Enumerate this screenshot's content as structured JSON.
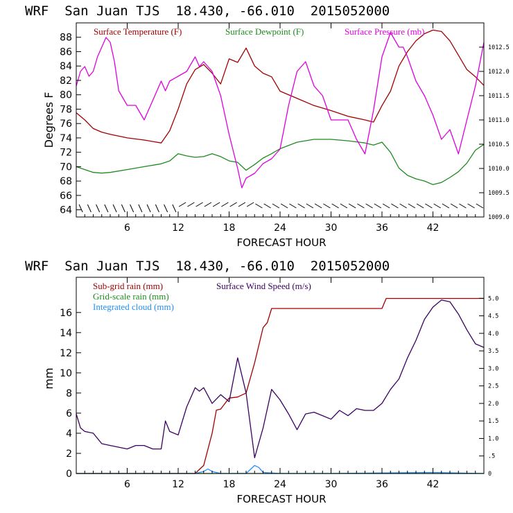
{
  "chart_data": [
    {
      "type": "line",
      "title": "WRF  San Juan TJS  18.430, -66.010  2015052000",
      "xlabel": "FORECAST HOUR",
      "ylabel": "Degrees F",
      "xlim": [
        0,
        48
      ],
      "ylim": [
        63,
        90
      ],
      "y2lim": [
        1009,
        1013
      ],
      "xticks": [
        6,
        12,
        18,
        24,
        30,
        36,
        42
      ],
      "yticks": [
        64,
        66,
        68,
        70,
        72,
        74,
        76,
        78,
        80,
        82,
        84,
        86,
        88
      ],
      "y2ticks": [
        1009.0,
        1009.5,
        1010.0,
        1010.5,
        1011.0,
        1011.5,
        1012.0,
        1012.5
      ],
      "y2tick_labels": [
        "1009.0",
        "1009.5",
        "1010.0",
        "1010.5",
        "1011.0",
        "1011.5",
        "1012.0",
        "1012.5"
      ],
      "colors": {
        "temp": "#a00000",
        "dew": "#1f8a1f",
        "pres": "#dd00dd"
      },
      "series": [
        {
          "name": "Surface Temperature (F)",
          "axis": "left",
          "color": "#a00000",
          "x": [
            0,
            1,
            2,
            3,
            4,
            6,
            8,
            9,
            10,
            11,
            12,
            13,
            14,
            15,
            16,
            17,
            18,
            19,
            20,
            21,
            22,
            23,
            24,
            26,
            28,
            30,
            32,
            34,
            35,
            36,
            37,
            38,
            39,
            40,
            41,
            42,
            43,
            44,
            45,
            46,
            47,
            48
          ],
          "y": [
            77.5,
            76.5,
            75.3,
            74.8,
            74.5,
            74.0,
            73.7,
            73.5,
            73.3,
            75.0,
            78.0,
            81.5,
            83.5,
            84.2,
            83.0,
            81.5,
            85.0,
            84.5,
            86.5,
            84.0,
            83.0,
            82.5,
            80.5,
            79.5,
            78.5,
            77.8,
            77.0,
            76.5,
            76.2,
            78.5,
            80.5,
            84.0,
            86.0,
            87.5,
            88.5,
            89.0,
            88.8,
            87.5,
            85.5,
            83.5,
            82.5,
            81.3
          ]
        },
        {
          "name": "Surface Dewpoint (F)",
          "axis": "left",
          "color": "#1f8a1f",
          "x": [
            0,
            1,
            2,
            3,
            4,
            6,
            8,
            10,
            11,
            12,
            13,
            14,
            15,
            16,
            17,
            18,
            19,
            20,
            21,
            22,
            23,
            24,
            26,
            28,
            30,
            32,
            34,
            35,
            36,
            37,
            38,
            39,
            40,
            41,
            42,
            43,
            44,
            45,
            46,
            47,
            48
          ],
          "y": [
            70.0,
            69.6,
            69.2,
            69.1,
            69.2,
            69.6,
            70.0,
            70.4,
            70.8,
            71.8,
            71.5,
            71.3,
            71.4,
            71.8,
            71.4,
            70.8,
            70.6,
            69.5,
            70.3,
            71.2,
            71.8,
            72.5,
            73.4,
            73.8,
            73.8,
            73.6,
            73.3,
            73.0,
            73.4,
            72.0,
            69.8,
            68.8,
            68.3,
            68.0,
            67.5,
            67.8,
            68.5,
            69.3,
            70.5,
            72.3,
            73.1
          ]
        },
        {
          "name": "Surface Pressure (mb)",
          "axis": "right",
          "color": "#dd00dd",
          "x": [
            0,
            0.5,
            1,
            1.5,
            2,
            2.5,
            3,
            3.5,
            4,
            4.5,
            5,
            6,
            7,
            8,
            8.5,
            9,
            10,
            10.5,
            11,
            12,
            13,
            14,
            14.5,
            15,
            16,
            17,
            18,
            19,
            19.5,
            20,
            21,
            22,
            23,
            24,
            25,
            26,
            27,
            28,
            29,
            30,
            31,
            32,
            33,
            34,
            35,
            36,
            37,
            38,
            38.5,
            39,
            40,
            41,
            42,
            43,
            44,
            45,
            46,
            47,
            48
          ],
          "y": [
            1011.7,
            1012.0,
            1012.1,
            1011.9,
            1012.0,
            1012.3,
            1012.5,
            1012.7,
            1012.6,
            1012.2,
            1011.6,
            1011.3,
            1011.3,
            1011.0,
            1011.2,
            1011.4,
            1011.8,
            1011.6,
            1011.8,
            1011.9,
            1012.0,
            1012.3,
            1012.1,
            1012.2,
            1012.0,
            1011.5,
            1010.7,
            1010.0,
            1009.6,
            1009.8,
            1009.9,
            1010.1,
            1010.2,
            1010.4,
            1011.3,
            1012.0,
            1012.2,
            1011.7,
            1011.5,
            1011.0,
            1011.0,
            1011.0,
            1010.6,
            1010.3,
            1011.2,
            1012.3,
            1012.8,
            1012.5,
            1012.5,
            1012.3,
            1011.8,
            1011.5,
            1011.1,
            1010.6,
            1010.8,
            1010.3,
            1011.0,
            1011.7,
            1012.6
          ]
        }
      ]
    },
    {
      "type": "line",
      "title": "WRF  San Juan TJS  18.430, -66.010  2015052000",
      "xlabel": "FORECAST HOUR",
      "ylabel": "mm",
      "xlim": [
        0,
        48
      ],
      "ylim": [
        0,
        19.5
      ],
      "y2lim": [
        0,
        5.6
      ],
      "xticks": [
        6,
        12,
        18,
        24,
        30,
        36,
        42
      ],
      "yticks": [
        0,
        2,
        4,
        6,
        8,
        10,
        12,
        14,
        16
      ],
      "y2ticks": [
        0,
        0.5,
        1.0,
        1.5,
        2.0,
        2.5,
        3.0,
        3.5,
        4.0,
        4.5,
        5.0
      ],
      "y2tick_labels": [
        "0",
        ".5",
        "1.0",
        "1.5",
        "2.0",
        "2.5",
        "3.0",
        "3.5",
        "4.0",
        "4.5",
        "5.0"
      ],
      "colors": {
        "subgrid": "#a00000",
        "grid": "#1f8a1f",
        "cloud": "#1e90ff",
        "wind": "#3a0060"
      },
      "series": [
        {
          "name": "Sub-grid rain (mm)",
          "axis": "left",
          "color": "#a00000",
          "x": [
            0,
            14,
            15,
            16,
            16.5,
            17,
            18,
            19,
            20,
            21,
            22,
            22.5,
            23,
            24,
            36,
            36.5,
            37,
            48
          ],
          "y": [
            0,
            0,
            0.8,
            4.0,
            6.3,
            6.4,
            7.5,
            7.6,
            8.0,
            11.0,
            14.5,
            15.0,
            16.4,
            16.4,
            16.4,
            17.4,
            17.4,
            17.4
          ]
        },
        {
          "name": "Grid-scale rain (mm)",
          "axis": "left",
          "color": "#1f8a1f",
          "x": [
            0,
            48
          ],
          "y": [
            0,
            0
          ]
        },
        {
          "name": "Integrated cloud (mm)",
          "axis": "left",
          "color": "#1e90ff",
          "x": [
            0,
            14,
            15,
            15.5,
            16,
            17,
            20,
            21,
            21.5,
            22,
            24,
            30,
            36,
            42,
            48
          ],
          "y": [
            0,
            0,
            0.2,
            0.45,
            0.2,
            0,
            0,
            0.8,
            0.6,
            0.1,
            0,
            0,
            0.05,
            0.1,
            0
          ]
        },
        {
          "name": "Surface Wind Speed (m/s)",
          "axis": "right",
          "color": "#3a0060",
          "x": [
            0,
            0.5,
            1,
            2,
            3,
            4,
            5,
            6,
            7,
            8,
            9,
            10,
            10.5,
            11,
            12,
            13,
            14,
            14.5,
            15,
            16,
            17,
            18,
            19,
            20,
            21,
            22,
            23,
            24,
            25,
            26,
            27,
            28,
            29,
            30,
            31,
            32,
            33,
            34,
            35,
            36,
            37,
            38,
            39,
            40,
            41,
            42,
            43,
            44,
            45,
            46,
            47,
            48
          ],
          "y": [
            1.7,
            1.3,
            1.2,
            1.15,
            0.85,
            0.8,
            0.75,
            0.7,
            0.8,
            0.8,
            0.7,
            0.7,
            1.5,
            1.2,
            1.1,
            1.9,
            2.45,
            2.35,
            2.45,
            2.0,
            2.25,
            2.05,
            3.3,
            2.3,
            0.45,
            1.3,
            2.4,
            2.1,
            1.7,
            1.25,
            1.7,
            1.75,
            1.65,
            1.55,
            1.8,
            1.65,
            1.85,
            1.8,
            1.8,
            2.0,
            2.4,
            2.7,
            3.3,
            3.8,
            4.4,
            4.75,
            4.95,
            4.9,
            4.55,
            4.1,
            3.7,
            3.6
          ]
        }
      ]
    }
  ]
}
